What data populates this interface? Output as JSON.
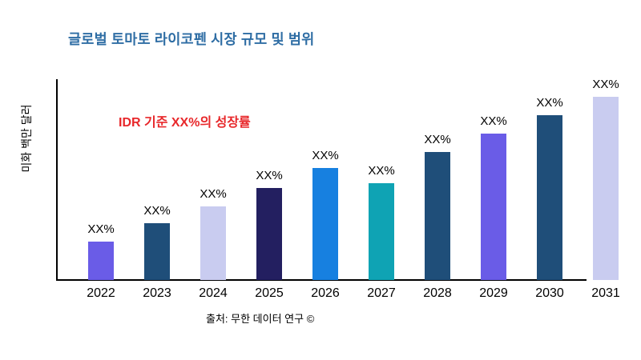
{
  "annotation": "IDR 기준 XX%의 성장률",
  "source": "출처: 무한 데이터 연구 ©",
  "colors": {
    "title": "#2E6DA4",
    "annotation": "#E8282B",
    "axis": "#000000",
    "background": "#FFFFFF"
  },
  "chart_data": {
    "type": "bar",
    "title": "글로벌 토마토 라이코펜 시장 규모 및 범위",
    "xlabel": "",
    "ylabel": "미화 백만 달러",
    "categories": [
      "2022",
      "2023",
      "2024",
      "2025",
      "2026",
      "2027",
      "2028",
      "2029",
      "2030",
      "2031"
    ],
    "values": [
      0.21,
      0.31,
      0.4,
      0.5,
      0.61,
      0.53,
      0.7,
      0.8,
      0.9,
      1.0
    ],
    "data_labels": [
      "XX%",
      "XX%",
      "XX%",
      "XX%",
      "XX%",
      "XX%",
      "XX%",
      "XX%",
      "XX%",
      "XX%"
    ],
    "bar_colors": [
      "#6A5CE7",
      "#1F4E79",
      "#C9CCF0",
      "#231F60",
      "#1780E0",
      "#0FA3B4",
      "#1F4E79",
      "#6A5CE7",
      "#1F4E79",
      "#C9CCF0"
    ],
    "ylim": [
      0,
      1
    ],
    "grid": false,
    "legend": "none",
    "annotation": "IDR 기준 XX%의 성장률",
    "source": "출처: 무한 데이터 연구 ©"
  }
}
